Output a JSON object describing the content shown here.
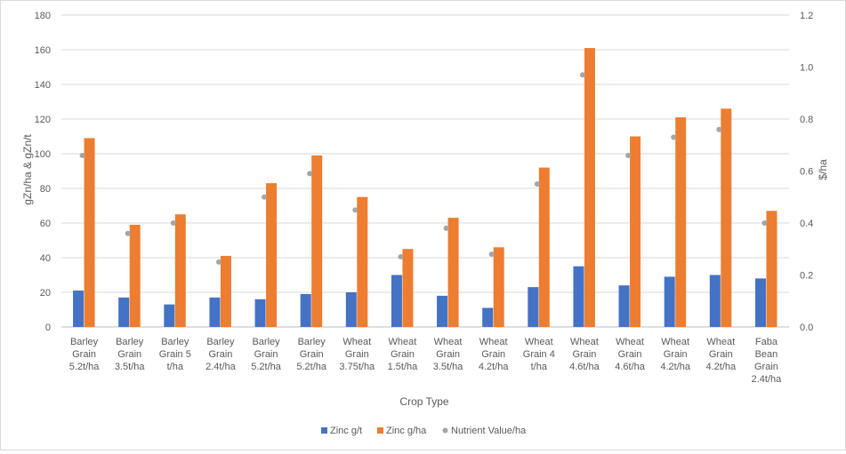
{
  "chart_data": {
    "type": "bar",
    "title": "",
    "xlabel": "Crop Type",
    "ylabel": "gZn/ha & gZn/t",
    "y2label": "$/ha",
    "ylim": [
      0,
      180
    ],
    "y2lim": [
      0,
      1.2
    ],
    "yticks": [
      "0",
      "20",
      "40",
      "60",
      "80",
      "100",
      "120",
      "140",
      "160",
      "180"
    ],
    "y2ticks": [
      "0.0",
      "0.2",
      "0.4",
      "0.6",
      "0.8",
      "1.0",
      "1.2"
    ],
    "grid": true,
    "legend_position": "bottom",
    "categories": [
      [
        "Barley",
        "Grain",
        "5.2t/ha"
      ],
      [
        "Barley",
        "Grain",
        "3.5t/ha"
      ],
      [
        "Barley",
        "Grain 5",
        "t/ha"
      ],
      [
        "Barley",
        "Grain",
        "2.4t/ha"
      ],
      [
        "Barley",
        "Grain",
        "5.2t/ha"
      ],
      [
        "Barley",
        "Grain",
        "5.2t/ha"
      ],
      [
        "Wheat",
        "Grain",
        "3.75t/ha"
      ],
      [
        "Wheat",
        "Grain",
        "1.5t/ha"
      ],
      [
        "Wheat",
        "Grain",
        "3.5t/ha"
      ],
      [
        "Wheat",
        "Grain",
        "4.2t/ha"
      ],
      [
        "Wheat",
        "Grain 4",
        "t/ha"
      ],
      [
        "Wheat",
        "Grain",
        "4.6t/ha"
      ],
      [
        "Wheat",
        "Grain",
        "4.6t/ha"
      ],
      [
        "Wheat",
        "Grain",
        "4.2t/ha"
      ],
      [
        "Wheat",
        "Grain",
        "4.2t/ha"
      ],
      [
        "Faba",
        "Bean",
        "Grain",
        "2.4t/ha"
      ]
    ],
    "series": [
      {
        "name": "Zinc g/t",
        "kind": "bar",
        "axis": "left",
        "color": "#4472c4",
        "values": [
          21,
          17,
          13,
          17,
          16,
          19,
          20,
          30,
          18,
          11,
          23,
          35,
          24,
          29,
          30,
          28
        ]
      },
      {
        "name": "Zinc g/ha",
        "kind": "bar",
        "axis": "left",
        "color": "#ed7d31",
        "values": [
          109,
          59,
          65,
          41,
          83,
          99,
          75,
          45,
          63,
          46,
          92,
          161,
          110,
          121,
          126,
          67
        ]
      },
      {
        "name": "Nutrient Value/ha",
        "kind": "marker",
        "axis": "right",
        "color": "#a5a5a5",
        "values": [
          0.66,
          0.36,
          0.4,
          0.25,
          0.5,
          0.59,
          0.45,
          0.27,
          0.38,
          0.28,
          0.55,
          0.97,
          0.66,
          0.73,
          0.76,
          0.4
        ]
      }
    ]
  }
}
